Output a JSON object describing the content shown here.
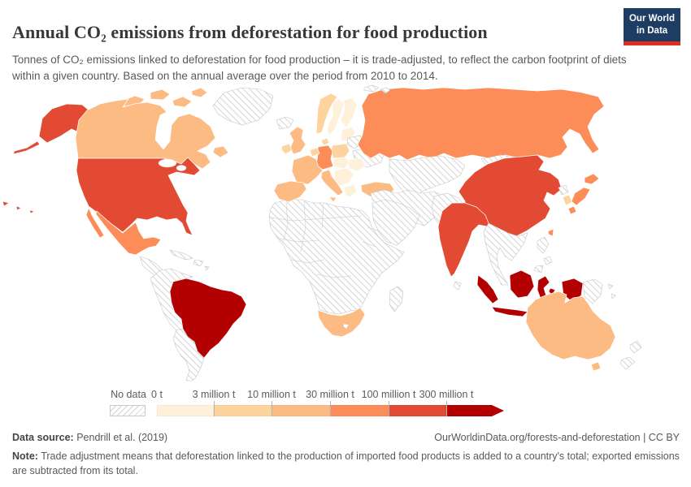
{
  "header": {
    "title": "Annual CO₂ emissions from deforestation for food production",
    "subtitle": "Tonnes of CO₂ emissions linked to deforestation for food production – it is trade-adjusted, to reflect the carbon footprint of diets within a given country. Based on the annual average over the period from 2010 to 2014.",
    "logo": {
      "line1": "Our World",
      "line2": "in Data",
      "bg_color": "#1d3d63",
      "accent_color": "#dc2f1d"
    }
  },
  "legend": {
    "no_data_label": "No data",
    "bins": [
      {
        "label": "0 t",
        "color": "#fef0d9"
      },
      {
        "label": "3 million t",
        "color": "#fdd49e"
      },
      {
        "label": "10 million t",
        "color": "#fdbb84"
      },
      {
        "label": "30 million t",
        "color": "#fc8d59"
      },
      {
        "label": "100 million t",
        "color": "#e34a33"
      },
      {
        "label": "300 million t",
        "color": "#b30000"
      }
    ]
  },
  "footer": {
    "source_label": "Data source:",
    "source_text": " Pendrill et al. (2019)",
    "url_text": "OurWorldinData.org/forests-and-deforestation | CC BY",
    "note_label": "Note:",
    "note_text": " Trade adjustment means that deforestation linked to the production of imported food products is added to a country's total; exported emissions are subtracted from its total."
  },
  "map": {
    "regions": {
      "greenland": -1,
      "iceland": -1,
      "canada": 2,
      "alaska": 4,
      "usa": 4,
      "mexico": 3,
      "central-america": -1,
      "caribbean": -1,
      "brazil": 5,
      "south-america-north": -1,
      "south-america-south": -1,
      "africa": -1,
      "south-africa": 2,
      "madagascar": -1,
      "uk": 2,
      "ireland": 1,
      "norway": 1,
      "sweden": 0,
      "finland": 0,
      "baltics": 0,
      "belarus": -1,
      "ukraine": -1,
      "poland": 1,
      "germany": 3,
      "denmark": 1,
      "benelux": 1,
      "france": 2,
      "iberia": 2,
      "italy": 2,
      "central-europe": 0,
      "balkans": 0,
      "romania": 0,
      "greece": 0,
      "turkey": 2,
      "russia": 3,
      "svalbard": -1,
      "central-asia": -1,
      "mongolia": -1,
      "middle-east": -1,
      "arabia": -1,
      "afghanistan-pakistan": -1,
      "india": 4,
      "sri-lanka": -1,
      "china": 4,
      "north-korea": -1,
      "south-korea": 1,
      "japan": 3,
      "taiwan": 3,
      "se-asia": -1,
      "philippines": -1,
      "indonesia": 5,
      "papua-new-guinea": -1,
      "australia": 2,
      "new-zealand": -1
    }
  },
  "chart_data": {
    "type": "choropleth",
    "title": "Annual CO₂ emissions from deforestation for food production",
    "unit": "tonnes of CO₂ per year, trade-adjusted",
    "period": "annual average over 2010 to 2014",
    "bins": [
      "0 t",
      "3 million t",
      "10 million t",
      "30 million t",
      "100 million t",
      "300 million t"
    ],
    "bin_colors": [
      "#fef0d9",
      "#fdd49e",
      "#fdbb84",
      "#fc8d59",
      "#e34a33",
      "#b30000"
    ],
    "no_data_style": "diagonal hatching",
    "legend_position": "bottom",
    "regions": [
      {
        "name": "Brazil",
        "value": "300 million t and above"
      },
      {
        "name": "Indonesia",
        "value": "300 million t and above"
      },
      {
        "name": "United States",
        "value": "100–300 million t"
      },
      {
        "name": "China",
        "value": "100–300 million t"
      },
      {
        "name": "India",
        "value": "100–300 million t"
      },
      {
        "name": "Russia",
        "value": "30–100 million t"
      },
      {
        "name": "Mexico",
        "value": "30–100 million t"
      },
      {
        "name": "Germany",
        "value": "30–100 million t"
      },
      {
        "name": "Japan",
        "value": "30–100 million t"
      },
      {
        "name": "Canada",
        "value": "10–30 million t"
      },
      {
        "name": "Australia",
        "value": "10–30 million t"
      },
      {
        "name": "United Kingdom",
        "value": "10–30 million t"
      },
      {
        "name": "France",
        "value": "10–30 million t"
      },
      {
        "name": "Spain & Portugal",
        "value": "10–30 million t"
      },
      {
        "name": "Italy",
        "value": "10–30 million t"
      },
      {
        "name": "Turkey",
        "value": "10–30 million t"
      },
      {
        "name": "South Africa",
        "value": "10–30 million t"
      },
      {
        "name": "Norway",
        "value": "3–10 million t"
      },
      {
        "name": "Ireland",
        "value": "3–10 million t"
      },
      {
        "name": "Poland",
        "value": "3–10 million t"
      },
      {
        "name": "South Korea",
        "value": "3–10 million t"
      },
      {
        "name": "Sweden",
        "value": "0–3 million t"
      },
      {
        "name": "Finland",
        "value": "0–3 million t"
      },
      {
        "name": "Greece",
        "value": "0–3 million t"
      },
      {
        "name": "Eastern Europe (Baltics, Balkans, Romania)",
        "value": "0–3 million t"
      },
      {
        "name": "Most of Africa, Middle East, Central Asia, Southeast Asia, non-Brazil South America, Greenland",
        "value": "No data"
      }
    ]
  }
}
